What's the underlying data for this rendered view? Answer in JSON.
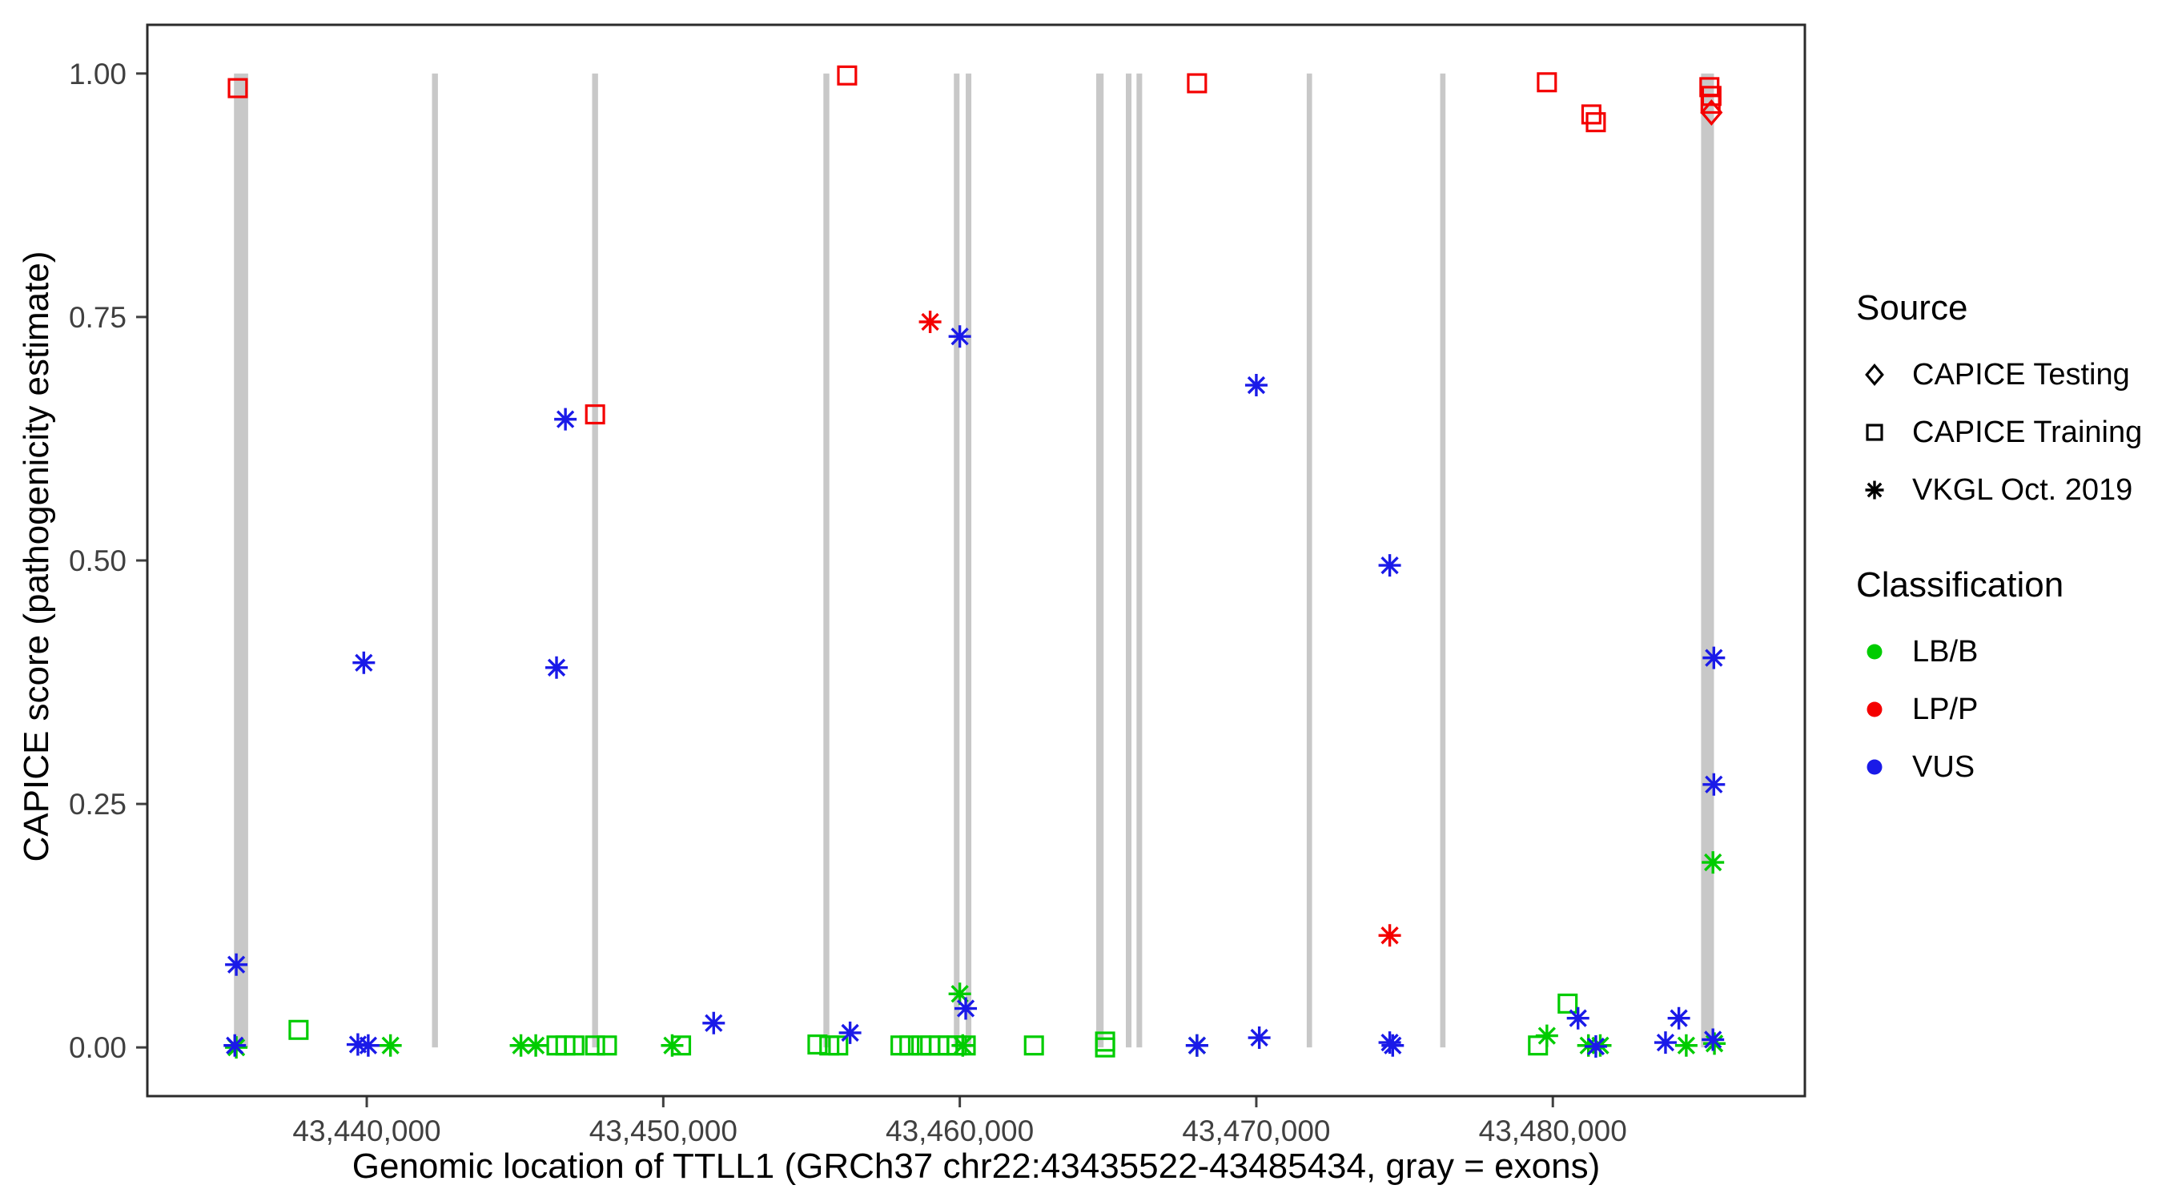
{
  "chart_data": {
    "type": "scatter",
    "title": "",
    "xlabel": "Genomic location of TTLL1 (GRCh37 chr22:43435522-43485434, gray = exons)",
    "ylabel": "CAPICE score (pathogenicity estimate)",
    "xlim": [
      43432600,
      43488500
    ],
    "ylim": [
      -0.05,
      1.05
    ],
    "grid": "off",
    "legend_position": "right",
    "colors": {
      "lb_b": "#00CC00",
      "lp_p": "#F40000",
      "vus": "#1A1AE8",
      "exon": "#C8C8C8",
      "tick_text": "#404040",
      "panel_border": "#2b2b2b",
      "legend_marker": "#000000"
    },
    "axes": {
      "x_ticks": [
        {
          "value": 43440000,
          "label": "43,440,000"
        },
        {
          "value": 43450000,
          "label": "43,450,000"
        },
        {
          "value": 43460000,
          "label": "43,460,000"
        },
        {
          "value": 43470000,
          "label": "43,470,000"
        },
        {
          "value": 43480000,
          "label": "43,480,000"
        }
      ],
      "y_ticks": [
        {
          "value": 0.0,
          "label": "0.00"
        },
        {
          "value": 0.25,
          "label": "0.25"
        },
        {
          "value": 0.5,
          "label": "0.50"
        },
        {
          "value": 0.75,
          "label": "0.75"
        },
        {
          "value": 1.0,
          "label": "1.00"
        }
      ]
    },
    "exons": [
      [
        43435522,
        43436000
      ],
      [
        43442200,
        43442400
      ],
      [
        43447600,
        43447800
      ],
      [
        43455400,
        43455600
      ],
      [
        43459800,
        43459990
      ],
      [
        43460200,
        43460390
      ],
      [
        43464600,
        43464850
      ],
      [
        43465600,
        43465790
      ],
      [
        43465960,
        43466150
      ],
      [
        43471700,
        43471880
      ],
      [
        43476200,
        43476380
      ],
      [
        43485000,
        43485434
      ]
    ],
    "series": [
      {
        "name": "CAPICE Testing LP/P",
        "source": "CAPICE Testing",
        "classification": "LP/P",
        "marker": "diamond",
        "color": "lp_p",
        "points": [
          [
            43485350,
            0.96
          ]
        ]
      },
      {
        "name": "CAPICE Training LP/P",
        "source": "CAPICE Training",
        "classification": "LP/P",
        "marker": "square",
        "color": "lp_p",
        "points": [
          [
            43435650,
            0.985
          ],
          [
            43447700,
            0.65
          ],
          [
            43456200,
            0.998
          ],
          [
            43468000,
            0.99
          ],
          [
            43479800,
            0.991
          ],
          [
            43481300,
            0.958
          ],
          [
            43481450,
            0.95
          ],
          [
            43485280,
            0.986
          ],
          [
            43485350,
            0.977
          ],
          [
            43485320,
            0.969
          ]
        ]
      },
      {
        "name": "VKGL Oct. 2019 LP/P",
        "source": "VKGL Oct. 2019",
        "classification": "LP/P",
        "marker": "asterisk",
        "color": "lp_p",
        "points": [
          [
            43459000,
            0.745
          ],
          [
            43474500,
            0.115
          ]
        ]
      },
      {
        "name": "CAPICE Training LB/B",
        "source": "CAPICE Training",
        "classification": "LB/B",
        "marker": "square",
        "color": "lb_b",
        "points": [
          [
            43437700,
            0.018
          ],
          [
            43446400,
            0.002
          ],
          [
            43446700,
            0.002
          ],
          [
            43447000,
            0.002
          ],
          [
            43447700,
            0.002
          ],
          [
            43448100,
            0.002
          ],
          [
            43450600,
            0.002
          ],
          [
            43455200,
            0.003
          ],
          [
            43455600,
            0.002
          ],
          [
            43455900,
            0.002
          ],
          [
            43458000,
            0.002
          ],
          [
            43458300,
            0.002
          ],
          [
            43458700,
            0.002
          ],
          [
            43459000,
            0.002
          ],
          [
            43459300,
            0.002
          ],
          [
            43459600,
            0.002
          ],
          [
            43459900,
            0.002
          ],
          [
            43460200,
            0.002
          ],
          [
            43462500,
            0.002
          ],
          [
            43464900,
            0.006
          ],
          [
            43464900,
            0.0
          ],
          [
            43479500,
            0.002
          ],
          [
            43480500,
            0.045
          ]
        ]
      },
      {
        "name": "VKGL Oct. 2019 LB/B",
        "source": "VKGL Oct. 2019",
        "classification": "LB/B",
        "marker": "asterisk",
        "color": "lb_b",
        "points": [
          [
            43435600,
            0.0
          ],
          [
            43440800,
            0.002
          ],
          [
            43445200,
            0.002
          ],
          [
            43445700,
            0.002
          ],
          [
            43450300,
            0.002
          ],
          [
            43460000,
            0.055
          ],
          [
            43460100,
            0.002
          ],
          [
            43468000,
            0.002
          ],
          [
            43479800,
            0.012
          ],
          [
            43481200,
            0.002
          ],
          [
            43481600,
            0.002
          ],
          [
            43484500,
            0.002
          ],
          [
            43485400,
            0.19
          ],
          [
            43485450,
            0.004
          ]
        ]
      },
      {
        "name": "VKGL Oct. 2019 VUS",
        "source": "VKGL Oct. 2019",
        "classification": "VUS",
        "marker": "asterisk",
        "color": "vus",
        "points": [
          [
            43435600,
            0.085
          ],
          [
            43435550,
            0.002
          ],
          [
            43439700,
            0.003
          ],
          [
            43440050,
            0.002
          ],
          [
            43439900,
            0.395
          ],
          [
            43446400,
            0.39
          ],
          [
            43446700,
            0.645
          ],
          [
            43451700,
            0.025
          ],
          [
            43456300,
            0.015
          ],
          [
            43460000,
            0.73
          ],
          [
            43460200,
            0.04
          ],
          [
            43468000,
            0.002
          ],
          [
            43470000,
            0.68
          ],
          [
            43470100,
            0.01
          ],
          [
            43474500,
            0.495
          ],
          [
            43474500,
            0.005
          ],
          [
            43474600,
            0.002
          ],
          [
            43480850,
            0.03
          ],
          [
            43481450,
            0.001
          ],
          [
            43483800,
            0.005
          ],
          [
            43484250,
            0.03
          ],
          [
            43485430,
            0.4
          ],
          [
            43485430,
            0.27
          ],
          [
            43485400,
            0.008
          ]
        ]
      }
    ],
    "legend": {
      "source_title": "Source",
      "source_items": [
        {
          "label": "CAPICE Testing",
          "marker": "diamond"
        },
        {
          "label": "CAPICE Training",
          "marker": "square"
        },
        {
          "label": "VKGL Oct. 2019",
          "marker": "asterisk"
        }
      ],
      "classification_title": "Classification",
      "classification_items": [
        {
          "label": "LB/B",
          "color": "lb_b"
        },
        {
          "label": "LP/P",
          "color": "lp_p"
        },
        {
          "label": "VUS",
          "color": "vus"
        }
      ]
    }
  }
}
